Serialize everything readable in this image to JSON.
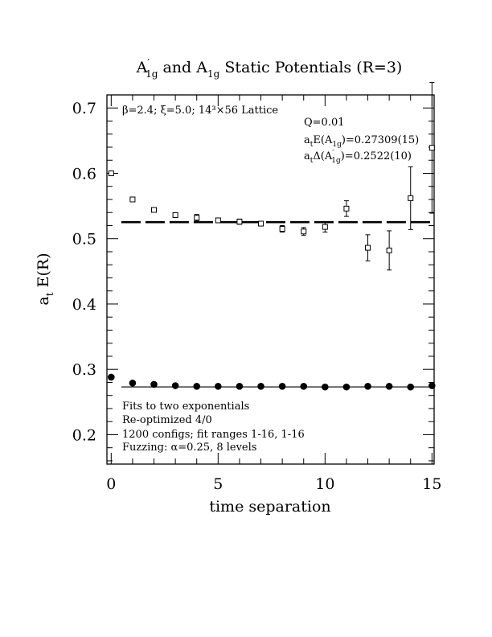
{
  "chart_data": {
    "type": "scatter",
    "title_parts": {
      "a1": "A",
      "a1_sup": "′",
      "a1_sub": "1g",
      "mid": " and ",
      "a2": "A",
      "a2_sub": "1g",
      "rest": " Static Potentials (R=3)"
    },
    "xlabel": "time separation",
    "ylabel_parts": {
      "main": "a",
      "sub": "t",
      "rest": " E(R)"
    },
    "xlim": [
      -0.2,
      15.1
    ],
    "ylim": [
      0.155,
      0.72
    ],
    "xticks": [
      0,
      5,
      10,
      15
    ],
    "xtick_labels": [
      "0",
      "5",
      "10",
      "15"
    ],
    "yticks": [
      0.2,
      0.3,
      0.4,
      0.5,
      0.6,
      0.7
    ],
    "ytick_labels": [
      "0.2",
      "0.3",
      "0.4",
      "0.5",
      "0.6",
      "0.7"
    ],
    "grid": false,
    "annotations": {
      "lattice": "β=2.4; ξ=5.0; 14³×56 Lattice",
      "q": "Q=0.01",
      "energy_main": "a",
      "energy_sub": "t",
      "energy_text": "E(A",
      "energy_sub2": "1g",
      "energy_val": ")=0.27309(15)",
      "delta_main": "a",
      "delta_sub": "t",
      "delta_text": "Δ(A",
      "delta_sup": "′",
      "delta_sub2": "1g",
      "delta_val": ")=0.2522(10)",
      "fits": "Fits to two exponentials",
      "reopt": "Re-optimized 4/0",
      "configs": "1200 configs; fit ranges 1-16, 1-16",
      "fuzz": "Fuzzing: α=0.25, 8 levels"
    },
    "series": [
      {
        "marker": "open-square",
        "x": [
          0,
          1,
          2,
          3,
          4,
          5,
          6,
          7,
          8,
          9,
          10,
          11,
          12,
          13,
          14,
          15
        ],
        "y": [
          0.6,
          0.56,
          0.544,
          0.536,
          0.532,
          0.528,
          0.526,
          0.523,
          0.515,
          0.511,
          0.518,
          0.546,
          0.486,
          0.482,
          0.562,
          0.639
        ],
        "err": [
          0.002,
          0.002,
          0.002,
          0.002,
          0.005,
          0.003,
          0.004,
          0.003,
          0.005,
          0.006,
          0.008,
          0.012,
          0.02,
          0.03,
          0.048,
          0.1
        ]
      },
      {
        "marker": "filled-circle",
        "x": [
          0,
          1,
          2,
          3,
          4,
          5,
          6,
          7,
          8,
          9,
          10,
          11,
          12,
          13,
          14,
          15
        ],
        "y": [
          0.288,
          0.279,
          0.277,
          0.275,
          0.274,
          0.274,
          0.274,
          0.274,
          0.274,
          0.274,
          0.273,
          0.273,
          0.274,
          0.274,
          0.273,
          0.275
        ],
        "err": [
          0.001,
          0.001,
          0.001,
          0.001,
          0.001,
          0.001,
          0.001,
          0.001,
          0.001,
          0.001,
          0.001,
          0.001,
          0.001,
          0.001,
          0.001,
          0.001
        ]
      }
    ],
    "fit_lines": [
      {
        "style": "dashed",
        "x": [
          1,
          15
        ],
        "y": 0.5253
      },
      {
        "style": "solid",
        "x": [
          1,
          15
        ],
        "y": 0.27309
      }
    ]
  }
}
